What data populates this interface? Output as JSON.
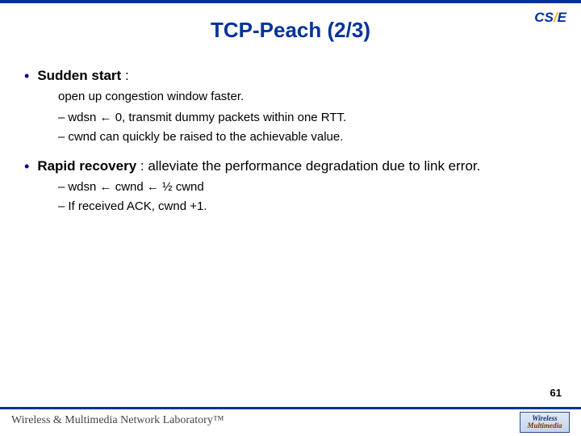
{
  "colors": {
    "topbar": "#003399",
    "title": "#003399",
    "bullet_dot": "#000099",
    "text": "#000000",
    "footer_text": "#444444",
    "background": "#ffffff"
  },
  "logo_top": {
    "cs": "CS",
    "slash": "/",
    "e": "E"
  },
  "title": {
    "main": "TCP-Peach ",
    "part": "(2/3)"
  },
  "bullets": [
    {
      "label": "Sudden start",
      "after": " :",
      "plain_sub": "open up congestion window faster.",
      "subs": [
        "wdsn ← 0, transmit dummy packets within one RTT.",
        "cwnd can quickly be raised to the achievable value."
      ]
    },
    {
      "label": "Rapid recovery",
      "after": " : alleviate the performance degradation due to link error.",
      "plain_sub": null,
      "subs": [
        "wdsn ← cwnd ← ½ cwnd",
        "If received ACK, cwnd +1."
      ]
    }
  ],
  "page_number": "61",
  "footer": {
    "text": "Wireless & Multimedia Network Laboratory™",
    "logo_line1": "Wireless",
    "logo_line2": "Multimedia"
  }
}
